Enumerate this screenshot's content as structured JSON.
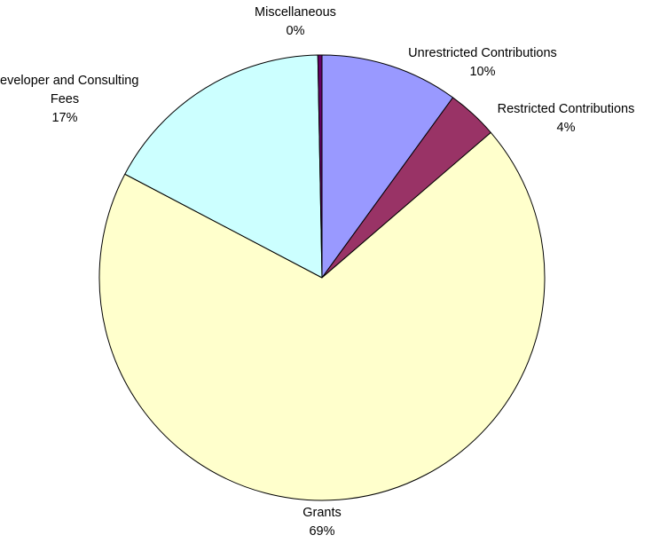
{
  "chart_data": {
    "type": "pie",
    "title": "",
    "slices": [
      {
        "label": "Unrestricted Contributions",
        "percent_label": "10%",
        "value": 10.0,
        "color": "#9999FF"
      },
      {
        "label": "Restricted Contributions",
        "percent_label": "4%",
        "value": 3.7,
        "color": "#993366"
      },
      {
        "label": "Grants",
        "percent_label": "69%",
        "value": 69.0,
        "color": "#FFFFCC"
      },
      {
        "label": "Developer and Consulting Fees",
        "percent_label": "17%",
        "value": 17.0,
        "color": "#CCFFFF"
      },
      {
        "label": "Miscellaneous",
        "percent_label": "0%",
        "value": 0.3,
        "color": "#660066"
      }
    ],
    "start_angle": "12 o'clock",
    "direction": "clockwise",
    "legend": "none",
    "labels": "category name and percentage beside each slice"
  }
}
